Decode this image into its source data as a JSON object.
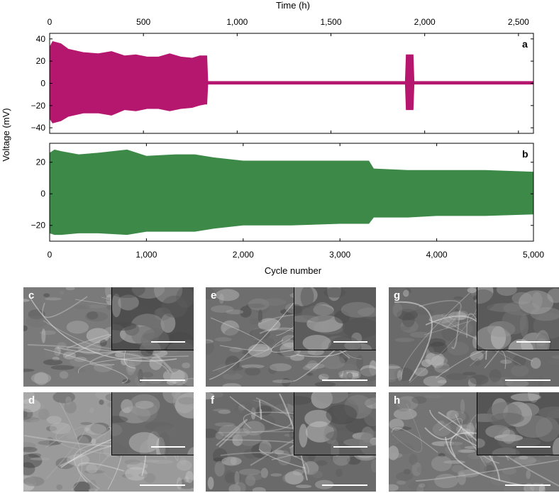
{
  "top_axis": {
    "label": "Time (h)",
    "ticks": [
      "0",
      "500",
      "1,000",
      "1,500",
      "2,000",
      "2,500"
    ],
    "tick_values": [
      0,
      500,
      1000,
      1500,
      2000,
      2500
    ],
    "range": [
      0,
      2580
    ]
  },
  "bottom_axis": {
    "label": "Cycle number",
    "ticks": [
      "0",
      "1,000",
      "2,000",
      "3,000",
      "4,000",
      "5,000"
    ],
    "tick_values": [
      0,
      1000,
      2000,
      3000,
      4000,
      5000
    ],
    "range": [
      0,
      5000
    ]
  },
  "y_axis_label": "Voltage (mV)",
  "chart_data": [
    {
      "panel": "a",
      "type": "area",
      "color": "#b5176f",
      "x_unit": "Time (h)",
      "ylim": [
        -45,
        45
      ],
      "y_ticks": [
        "40",
        "20",
        "0",
        "−20",
        "−40"
      ],
      "y_tick_values": [
        40,
        20,
        0,
        -20,
        -40
      ],
      "envelope": {
        "x": [
          0,
          15,
          60,
          100,
          180,
          260,
          330,
          400,
          460,
          520,
          580,
          640,
          700,
          760,
          800,
          830,
          840,
          845,
          1000,
          1500,
          1895,
          1900,
          1940,
          1945,
          2000,
          2500,
          2580
        ],
        "upper": [
          33,
          38,
          36,
          31,
          28,
          27,
          29,
          25,
          26,
          24,
          24,
          27,
          24,
          23,
          25,
          25,
          25,
          2,
          2,
          2,
          2,
          26,
          26,
          2,
          2,
          2,
          2
        ],
        "lower": [
          -32,
          -36,
          -34,
          -30,
          -27,
          -27,
          -29,
          -24,
          -25,
          -23,
          -23,
          -25,
          -23,
          -22,
          -20,
          -19,
          -19,
          -1,
          -1,
          -1,
          -1,
          -24,
          -24,
          -1,
          -1,
          -1,
          -1
        ]
      }
    },
    {
      "panel": "b",
      "type": "area",
      "color": "#3d8a48",
      "x_unit": "Cycle number",
      "ylim": [
        -30,
        32
      ],
      "y_ticks": [
        "20",
        "0",
        "−20"
      ],
      "y_tick_values": [
        20,
        0,
        -20
      ],
      "envelope": {
        "x": [
          0,
          50,
          120,
          300,
          500,
          800,
          1000,
          1300,
          1500,
          1700,
          2000,
          2500,
          3000,
          3300,
          3350,
          3700,
          4000,
          4500,
          5000
        ],
        "upper": [
          26,
          28,
          27,
          25,
          26,
          28,
          24,
          25,
          25,
          23,
          21,
          21,
          21,
          21,
          16,
          15,
          15,
          15,
          14
        ],
        "lower": [
          -25,
          -26,
          -26,
          -25,
          -25,
          -26,
          -24,
          -24,
          -24,
          -22,
          -20,
          -20,
          -19,
          -19,
          -15,
          -15,
          -14,
          -14,
          -13
        ]
      }
    }
  ],
  "sem_panels": [
    {
      "label": "c",
      "tone": "#7a7a7a",
      "inset_tone": "#4e4e4e"
    },
    {
      "label": "d",
      "tone": "#9a9a9a",
      "inset_tone": "#6a6a6a"
    },
    {
      "label": "e",
      "tone": "#6e6e6e",
      "inset_tone": "#5c5c5c"
    },
    {
      "label": "f",
      "tone": "#6a6a6a",
      "inset_tone": "#5e5e5e"
    },
    {
      "label": "g",
      "tone": "#6a6a6a",
      "inset_tone": "#5a5a5a"
    },
    {
      "label": "h",
      "tone": "#747474",
      "inset_tone": "#555555"
    }
  ]
}
